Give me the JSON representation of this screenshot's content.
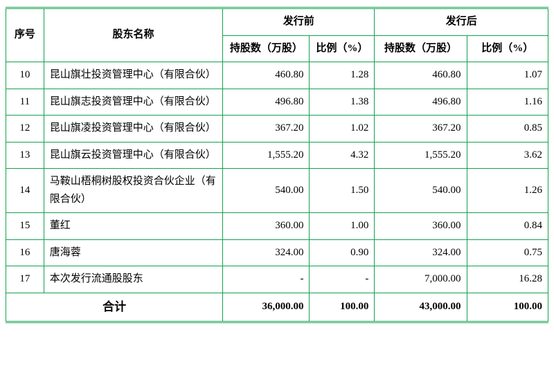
{
  "columns": {
    "idx": "序号",
    "name": "股东名称",
    "before_group": "发行前",
    "after_group": "发行后",
    "shares": "持股数（万股）",
    "pct": "比例（%）",
    "pct_after": "比例（%）"
  },
  "rows": [
    {
      "idx": "10",
      "name": "昆山旗壮投资管理中心（有限合伙）",
      "s1": "460.80",
      "p1": "1.28",
      "s2": "460.80",
      "p2": "1.07"
    },
    {
      "idx": "11",
      "name": "昆山旗志投资管理中心（有限合伙）",
      "s1": "496.80",
      "p1": "1.38",
      "s2": "496.80",
      "p2": "1.16"
    },
    {
      "idx": "12",
      "name": "昆山旗凌投资管理中心（有限合伙）",
      "s1": "367.20",
      "p1": "1.02",
      "s2": "367.20",
      "p2": "0.85"
    },
    {
      "idx": "13",
      "name": "昆山旗云投资管理中心（有限合伙）",
      "s1": "1,555.20",
      "p1": "4.32",
      "s2": "1,555.20",
      "p2": "3.62"
    },
    {
      "idx": "14",
      "name": "马鞍山梧桐树股权投资合伙企业（有限合伙）",
      "s1": "540.00",
      "p1": "1.50",
      "s2": "540.00",
      "p2": "1.26"
    },
    {
      "idx": "15",
      "name": "董红",
      "s1": "360.00",
      "p1": "1.00",
      "s2": "360.00",
      "p2": "0.84"
    },
    {
      "idx": "16",
      "name": "唐海蓉",
      "s1": "324.00",
      "p1": "0.90",
      "s2": "324.00",
      "p2": "0.75"
    },
    {
      "idx": "17",
      "name": "本次发行流通股股东",
      "s1": "-",
      "p1": "-",
      "s2": "7,000.00",
      "p2": "16.28"
    }
  ],
  "total": {
    "label": "合计",
    "s1": "36,000.00",
    "p1": "100.00",
    "s2": "43,000.00",
    "p2": "100.00"
  },
  "styling": {
    "border_color": "#13a04e",
    "background_color": "#ffffff",
    "text_color": "#000000",
    "font_family": "SimSun",
    "body_fontsize": 15,
    "header_fontweight": "bold",
    "total_fontweight": "bold",
    "col_widths_pct": [
      7,
      33,
      16,
      12,
      17,
      15
    ],
    "outer_border": "double",
    "line_height": 1.7
  }
}
